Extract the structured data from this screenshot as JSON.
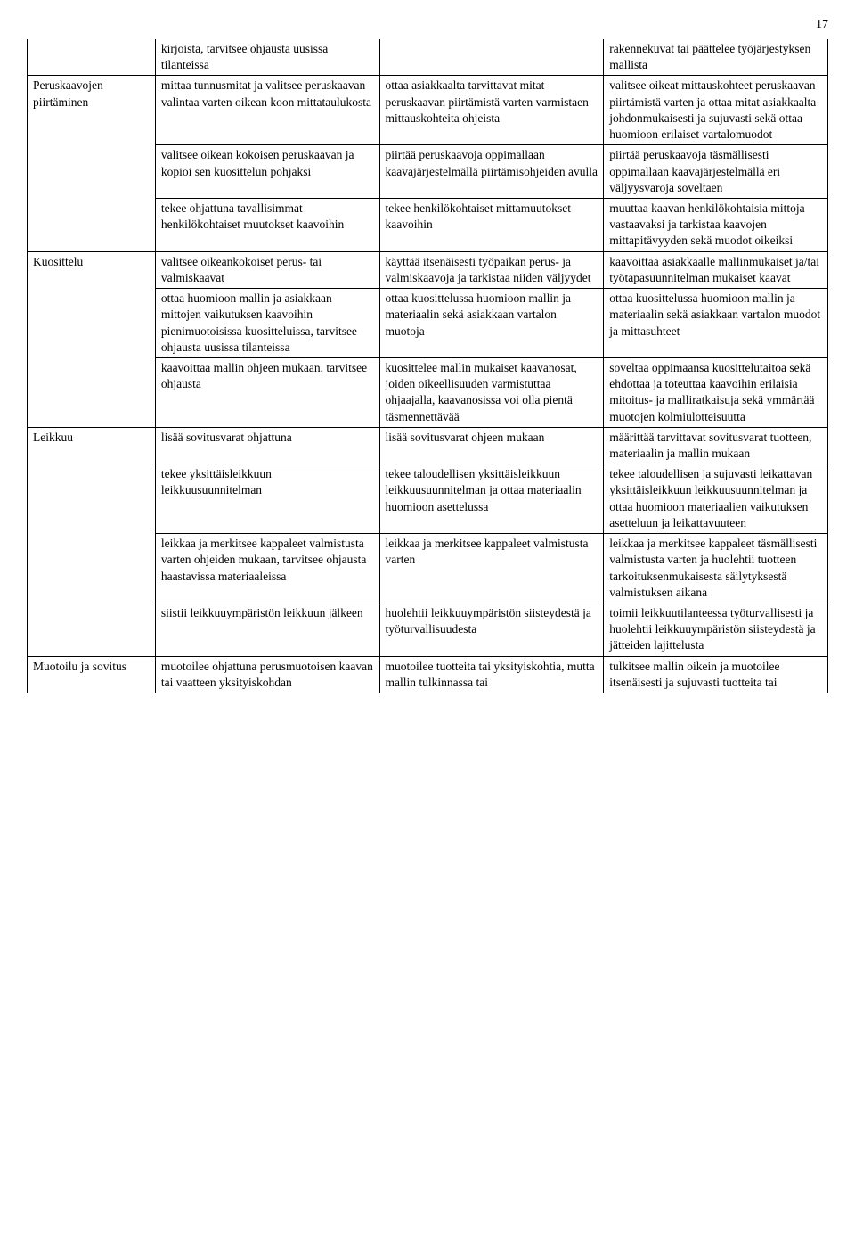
{
  "page_number": "17",
  "sections": [
    {
      "label": "",
      "rows": [
        {
          "col1": "kirjoista, tarvitsee ohjausta uusissa tilanteissa",
          "col2": "",
          "col3": "rakennekuvat tai päättelee työjärjestyksen mallista"
        }
      ]
    },
    {
      "label": "Peruskaavojen piirtäminen",
      "rows": [
        {
          "col1": "mittaa tunnusmitat ja valitsee peruskaavan valintaa varten oikean koon mittataulukosta",
          "col2": "ottaa asiakkaalta tarvittavat mitat peruskaavan piirtämistä varten varmistaen mittauskohteita ohjeista",
          "col3": "valitsee oikeat mittauskohteet peruskaavan piirtämistä varten ja ottaa mitat asiakkaalta johdonmukaisesti ja sujuvasti sekä ottaa huomioon erilaiset vartalomuodot"
        },
        {
          "col1": "valitsee oikean kokoisen peruskaavan ja kopioi sen kuosittelun pohjaksi",
          "col2": "piirtää peruskaavoja oppimallaan kaavajärjestelmällä piirtämisohjeiden avulla",
          "col3": "piirtää peruskaavoja täsmällisesti oppimallaan kaavajärjestelmällä eri väljyysvaroja soveltaen"
        },
        {
          "col1": "tekee ohjattuna tavallisimmat henkilökohtaiset muutokset kaavoihin",
          "col2": "tekee henkilökohtaiset mittamuutokset kaavoihin",
          "col3": "muuttaa kaavan henkilökohtaisia mittoja vastaavaksi ja tarkistaa kaavojen mittapitävyyden sekä muodot oikeiksi"
        }
      ]
    },
    {
      "label": "Kuosittelu",
      "rows": [
        {
          "col1": "valitsee oikeankokoiset perus- tai valmiskaavat",
          "col2": "käyttää itsenäisesti työpaikan perus- ja valmiskaavoja ja tarkistaa niiden väljyydet",
          "col3": "kaavoittaa asiakkaalle mallinmukaiset ja/tai työtapasuunnitelman mukaiset kaavat"
        },
        {
          "col1": "ottaa huomioon mallin ja asiakkaan mittojen vaikutuksen kaavoihin pienimuotoisissa kuositteluissa, tarvitsee ohjausta uusissa tilanteissa",
          "col2": "ottaa kuosittelussa huomioon mallin ja materiaalin sekä asiakkaan vartalon muotoja",
          "col3": "ottaa kuosittelussa huomioon mallin ja materiaalin sekä asiakkaan vartalon muodot ja mittasuhteet"
        },
        {
          "col1": "kaavoittaa mallin ohjeen mukaan, tarvitsee ohjausta",
          "col2": "kuosittelee mallin mukaiset kaavanosat, joiden oikeellisuuden varmistuttaa ohjaajalla, kaavanosissa voi olla pientä täsmennettävää",
          "col3": "soveltaa oppimaansa kuosittelutaitoa sekä ehdottaa ja toteuttaa kaavoihin erilaisia mitoitus- ja malliratkaisuja sekä ymmärtää muotojen kolmiulotteisuutta"
        }
      ]
    },
    {
      "label": "Leikkuu",
      "rows": [
        {
          "col1": "lisää sovitusvarat ohjattuna",
          "col2": "lisää sovitusvarat ohjeen mukaan",
          "col3": "määrittää tarvittavat sovitusvarat tuotteen, materiaalin ja mallin mukaan"
        },
        {
          "col1": "tekee yksittäisleikkuun leikkuusuunnitelman",
          "col2": "tekee taloudellisen yksittäisleikkuun leikkuusuunnitelman ja ottaa materiaalin huomioon asettelussa",
          "col3": "tekee taloudellisen ja sujuvasti leikattavan yksittäisleikkuun leikkuusuunnitelman ja ottaa huomioon materiaalien vaikutuksen asetteluun ja leikattavuuteen"
        },
        {
          "col1": "leikkaa ja merkitsee kappaleet valmistusta varten ohjeiden mukaan, tarvitsee ohjausta haastavissa materiaaleissa",
          "col2": "leikkaa ja merkitsee kappaleet valmistusta varten",
          "col3": "leikkaa ja merkitsee kappaleet täsmällisesti valmistusta varten ja huolehtii tuotteen tarkoituksenmukaisesta säilytyksestä valmistuksen aikana"
        },
        {
          "col1": "siistii leikkuuympäristön leikkuun jälkeen",
          "col2": "huolehtii leikkuuympäristön siisteydestä ja työturvallisuudesta",
          "col3": "toimii leikkuutilanteessa työturvallisesti ja huolehtii leikkuuympäristön siisteydestä ja jätteiden lajittelusta"
        }
      ]
    },
    {
      "label": "Muotoilu ja sovitus",
      "rows": [
        {
          "col1": "muotoilee ohjattuna perusmuotoisen kaavan tai vaatteen yksityiskohdan",
          "col2": "muotoilee tuotteita tai yksityiskohtia, mutta mallin tulkinnassa tai",
          "col3": "tulkitsee mallin oikein ja muotoilee itsenäisesti ja sujuvasti tuotteita tai"
        }
      ]
    }
  ]
}
